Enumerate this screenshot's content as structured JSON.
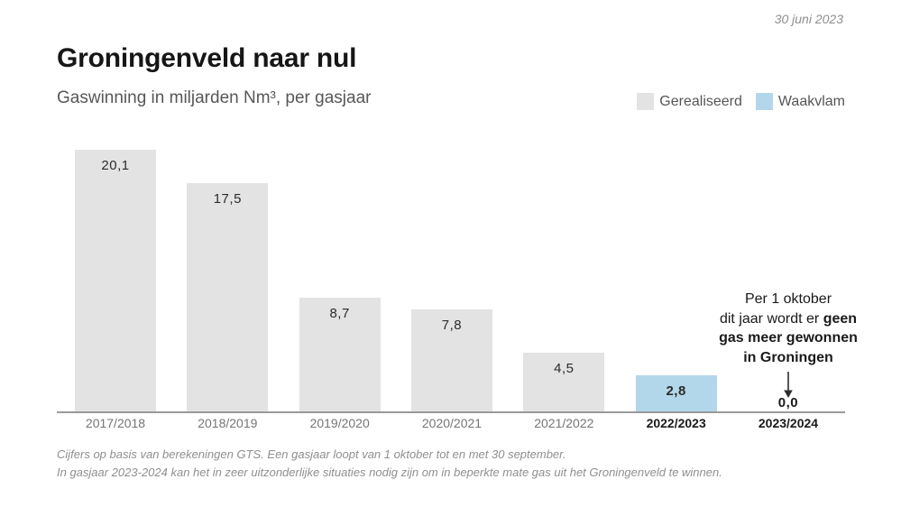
{
  "meta": {
    "date_label": "30 juni 2023"
  },
  "header": {
    "title": "Groningenveld naar nul",
    "subtitle": "Gaswinning in miljarden Nm³, per gasjaar"
  },
  "legend": [
    {
      "label": "Gerealiseerd",
      "color": "#e3e3e3"
    },
    {
      "label": "Waakvlam",
      "color": "#b3d7ea"
    }
  ],
  "chart_data": {
    "type": "bar",
    "title": "Groningenveld naar nul",
    "subtitle": "Gaswinning in miljarden Nm³, per gasjaar",
    "xlabel": "gasjaar",
    "ylabel": "Gaswinning in miljarden Nm³",
    "ylim": [
      0,
      22
    ],
    "grid": false,
    "legend_position": "top-right",
    "categories": [
      "2017/2018",
      "2018/2019",
      "2019/2020",
      "2020/2021",
      "2021/2022",
      "2022/2023",
      "2023/2024"
    ],
    "values": [
      20.1,
      17.5,
      8.7,
      7.8,
      4.5,
      2.8,
      0.0
    ],
    "value_labels": [
      "20,1",
      "17,5",
      "8,7",
      "7,8",
      "4,5",
      "2,8",
      "0,0"
    ],
    "bar_series": [
      "Gerealiseerd",
      "Gerealiseerd",
      "Gerealiseerd",
      "Gerealiseerd",
      "Gerealiseerd",
      "Waakvlam",
      "Gerealiseerd"
    ],
    "bar_colors": [
      "#e3e3e3",
      "#e3e3e3",
      "#e3e3e3",
      "#e3e3e3",
      "#e3e3e3",
      "#b3d7ea",
      null
    ],
    "bold_value_indexes": [
      5,
      6
    ],
    "bold_category_indexes": [
      5,
      6
    ]
  },
  "annotation": {
    "lines": [
      [
        {
          "t": "Per 1 oktober",
          "b": false
        }
      ],
      [
        {
          "t": "dit jaar wordt er ",
          "b": false
        },
        {
          "t": "geen",
          "b": true
        }
      ],
      [
        {
          "t": "gas meer gewonnen",
          "b": true
        }
      ],
      [
        {
          "t": "in Groningen",
          "b": true
        }
      ]
    ],
    "arrow_color": "#2d2d2d"
  },
  "footnotes": [
    "Cijfers op basis van berekeningen GTS. Een gasjaar loopt van 1 oktober tot en met 30 september.",
    "In gasjaar 2023-2024 kan het in zeer uitzonderlijke situaties nodig zijn om in beperkte mate gas uit het Groningenveld te winnen."
  ]
}
